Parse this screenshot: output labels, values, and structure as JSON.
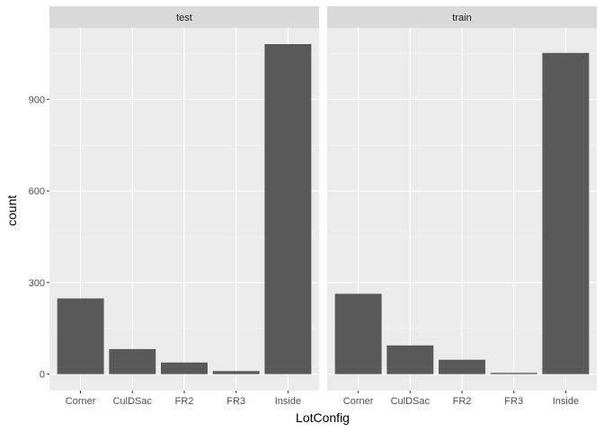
{
  "chart_data": {
    "type": "bar",
    "xlabel": "LotConfig",
    "ylabel": "count",
    "categories": [
      "Corner",
      "CulDSac",
      "FR2",
      "FR3",
      "Inside"
    ],
    "y_ticks": [
      0,
      300,
      600,
      900
    ],
    "ylim": [
      -54,
      1134
    ],
    "panels": [
      {
        "name": "test",
        "values": [
          248,
          82,
          38,
          10,
          1081
        ]
      },
      {
        "name": "train",
        "values": [
          263,
          94,
          47,
          4,
          1052
        ]
      }
    ]
  },
  "colors": {
    "panel_background": "#ebebeb",
    "strip_background": "#d9d9d9",
    "bar_fill": "#595959",
    "grid_major": "#ffffff",
    "grid_minor": "#f5f5f5"
  }
}
